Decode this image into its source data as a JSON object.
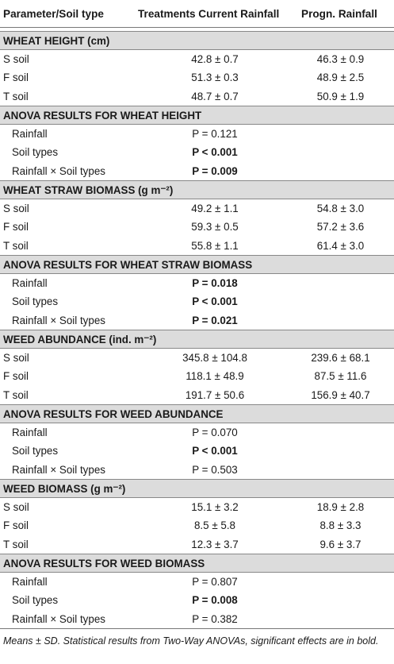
{
  "header": {
    "col1": "Parameter/Soil type",
    "col2": "Treatments Current Rainfall",
    "col3": "Progn. Rainfall"
  },
  "sections": [
    {
      "title": "WHEAT HEIGHT (cm)",
      "type": "data",
      "rows": [
        {
          "label": "S soil",
          "current": "42.8 ± 0.7",
          "progn": "46.3 ± 0.9"
        },
        {
          "label": "F soil",
          "current": "51.3 ± 0.3",
          "progn": "48.9 ± 2.5"
        },
        {
          "label": "T soil",
          "current": "48.7 ± 0.7",
          "progn": "50.9 ± 1.9"
        }
      ]
    },
    {
      "title": "ANOVA RESULTS FOR WHEAT HEIGHT",
      "type": "anova",
      "rows": [
        {
          "label": "Rainfall",
          "p": "P = 0.121",
          "bold": false
        },
        {
          "label": "Soil types",
          "p": "P < 0.001",
          "bold": true
        },
        {
          "label": "Rainfall × Soil types",
          "p": "P = 0.009",
          "bold": true
        }
      ]
    },
    {
      "title": "WHEAT STRAW BIOMASS (g m⁻²)",
      "type": "data",
      "rows": [
        {
          "label": "S soil",
          "current": "49.2 ± 1.1",
          "progn": "54.8 ± 3.0"
        },
        {
          "label": "F soil",
          "current": "59.3 ± 0.5",
          "progn": "57.2 ± 3.6"
        },
        {
          "label": "T soil",
          "current": "55.8 ± 1.1",
          "progn": "61.4 ± 3.0"
        }
      ]
    },
    {
      "title": "ANOVA RESULTS FOR WHEAT STRAW BIOMASS",
      "type": "anova",
      "rows": [
        {
          "label": "Rainfall",
          "p": "P = 0.018",
          "bold": true
        },
        {
          "label": "Soil types",
          "p": "P < 0.001",
          "bold": true
        },
        {
          "label": "Rainfall × Soil types",
          "p": "P = 0.021",
          "bold": true
        }
      ]
    },
    {
      "title": "WEED ABUNDANCE (ind. m⁻²)",
      "type": "data",
      "rows": [
        {
          "label": "S soil",
          "current": "345.8 ± 104.8",
          "progn": "239.6 ± 68.1"
        },
        {
          "label": "F soil",
          "current": "118.1 ± 48.9",
          "progn": "87.5 ± 11.6"
        },
        {
          "label": "T soil",
          "current": "191.7 ± 50.6",
          "progn": "156.9 ± 40.7"
        }
      ]
    },
    {
      "title": "ANOVA RESULTS FOR WEED ABUNDANCE",
      "type": "anova",
      "rows": [
        {
          "label": "Rainfall",
          "p": "P = 0.070",
          "bold": false
        },
        {
          "label": "Soil types",
          "p": "P < 0.001",
          "bold": true
        },
        {
          "label": "Rainfall × Soil types",
          "p": "P = 0.503",
          "bold": false
        }
      ]
    },
    {
      "title": "WEED BIOMASS (g m⁻²)",
      "type": "data",
      "rows": [
        {
          "label": "S soil",
          "current": "15.1 ± 3.2",
          "progn": "18.9 ± 2.8"
        },
        {
          "label": "F soil",
          "current": "8.5 ± 5.8",
          "progn": "8.8 ± 3.3"
        },
        {
          "label": "T soil",
          "current": "12.3 ± 3.7",
          "progn": "9.6 ± 3.7"
        }
      ]
    },
    {
      "title": "ANOVA RESULTS FOR WEED BIOMASS",
      "type": "anova",
      "rows": [
        {
          "label": "Rainfall",
          "p": "P = 0.807",
          "bold": false
        },
        {
          "label": "Soil types",
          "p": "P = 0.008",
          "bold": true
        },
        {
          "label": "Rainfall × Soil types",
          "p": "P = 0.382",
          "bold": false
        }
      ]
    }
  ],
  "footnote": "Means ± SD. Statistical results from Two-Way ANOVAs, significant effects are in bold."
}
